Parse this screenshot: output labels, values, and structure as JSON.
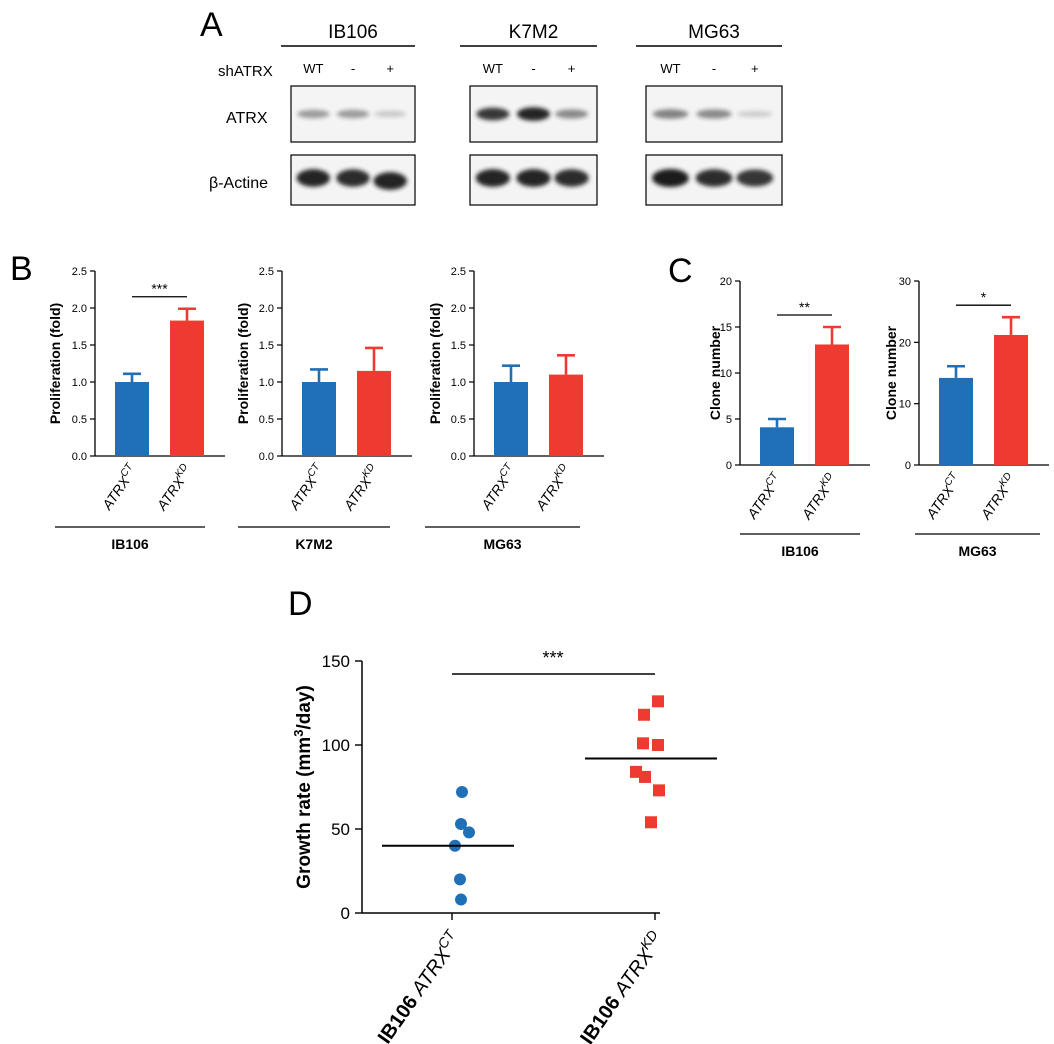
{
  "colors": {
    "ct": "#2070b8",
    "kd": "#ee3a30",
    "blot_bg": "#f4f4f4",
    "band": "#1c1c1c",
    "axis": "#000000"
  },
  "panel_a": {
    "letter": "A",
    "row_header": "shATRX",
    "row_labels": [
      "ATRX",
      "β-Actine"
    ],
    "lane_labels": [
      "WT",
      "-",
      "+"
    ],
    "cell_lines": [
      {
        "name": "IB106",
        "atrx": [
          0.3,
          0.3,
          0.06
        ],
        "actin": [
          0.95,
          0.9,
          0.95
        ]
      },
      {
        "name": "K7M2",
        "atrx": [
          0.85,
          0.95,
          0.4
        ],
        "actin": [
          0.95,
          0.95,
          0.9
        ]
      },
      {
        "name": "MG63",
        "atrx": [
          0.45,
          0.4,
          0.04
        ],
        "actin": [
          1.0,
          0.9,
          0.85
        ]
      }
    ]
  },
  "chart_data": [
    {
      "panel": "B",
      "type": "bar",
      "group_label": "IB106",
      "categories": [
        "ATRX",
        "ATRX"
      ],
      "cat_sup": [
        "CT",
        "KD"
      ],
      "values": [
        1.0,
        1.83
      ],
      "errors": [
        0.11,
        0.16
      ],
      "ylabel": "Proliferation (fold)",
      "ylim": [
        0,
        2.5
      ],
      "yticks": [
        "0.0",
        "0.5",
        "1.0",
        "1.5",
        "2.0",
        "2.5"
      ],
      "significance": "***"
    },
    {
      "panel": "B",
      "type": "bar",
      "group_label": "K7M2",
      "categories": [
        "ATRX",
        "ATRX"
      ],
      "cat_sup": [
        "CT",
        "KD"
      ],
      "values": [
        1.0,
        1.15
      ],
      "errors": [
        0.17,
        0.31
      ],
      "ylabel": "Proliferation (fold)",
      "ylim": [
        0,
        2.5
      ],
      "yticks": [
        "0.0",
        "0.5",
        "1.0",
        "1.5",
        "2.0",
        "2.5"
      ],
      "significance": ""
    },
    {
      "panel": "B",
      "type": "bar",
      "group_label": "MG63",
      "categories": [
        "ATRX",
        "ATRX"
      ],
      "cat_sup": [
        "CT",
        "KD"
      ],
      "values": [
        1.0,
        1.1
      ],
      "errors": [
        0.22,
        0.26
      ],
      "ylabel": "Proliferation (fold)",
      "ylim": [
        0,
        2.5
      ],
      "yticks": [
        "0.0",
        "0.5",
        "1.0",
        "1.5",
        "2.0",
        "2.5"
      ],
      "significance": ""
    },
    {
      "panel": "C",
      "type": "bar",
      "group_label": "IB106",
      "categories": [
        "ATRX",
        "ATRX"
      ],
      "cat_sup": [
        "CT",
        "KD"
      ],
      "values": [
        4.1,
        13.1
      ],
      "errors": [
        0.9,
        1.9
      ],
      "ylabel": "Clone number",
      "ylim": [
        0,
        20
      ],
      "yticks": [
        "0",
        "5",
        "10",
        "15",
        "20"
      ],
      "significance": "**"
    },
    {
      "panel": "C",
      "type": "bar",
      "group_label": "MG63",
      "categories": [
        "ATRX",
        "ATRX"
      ],
      "cat_sup": [
        "CT",
        "KD"
      ],
      "values": [
        14.2,
        21.2
      ],
      "errors": [
        1.9,
        2.9
      ],
      "ylabel": "Clone number",
      "ylim": [
        0,
        30
      ],
      "yticks": [
        "0",
        "10",
        "20",
        "30"
      ],
      "significance": "*"
    },
    {
      "panel": "D",
      "type": "scatter",
      "ylabel_pre": "Growth rate (mm",
      "ylabel_sup": "3",
      "ylabel_post": "/day)",
      "ylim": [
        0,
        150
      ],
      "yticks": [
        "0",
        "50",
        "100",
        "150"
      ],
      "series": [
        {
          "name": "IB106 ATRX",
          "sup": "CT",
          "points": [
            72,
            53,
            48,
            40,
            20,
            8
          ],
          "mean": 40
        },
        {
          "name": "IB106 ATRX",
          "sup": "KD",
          "points": [
            126,
            118,
            101,
            100,
            84,
            81,
            73,
            54
          ],
          "mean": 92
        }
      ],
      "significance": "***"
    }
  ],
  "panel_letters": {
    "b": "B",
    "c": "C",
    "d": "D"
  }
}
